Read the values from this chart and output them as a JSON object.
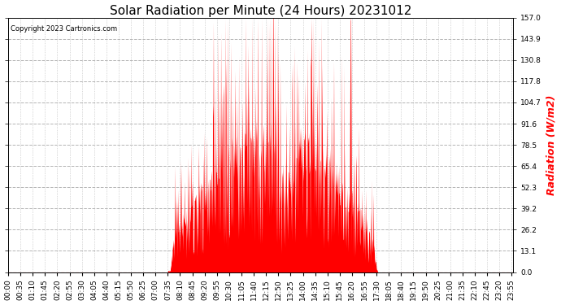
{
  "title": "Solar Radiation per Minute (24 Hours) 20231012",
  "ylabel": "Radiation (W/m2)",
  "ylabel_color": "#ff0000",
  "copyright_text": "Copyright 2023 Cartronics.com",
  "background_color": "#ffffff",
  "plot_bg_color": "#ffffff",
  "bar_color": "#ff0000",
  "grid_color": "#b4b4b4",
  "zero_line_color": "#ff0000",
  "ylim": [
    0.0,
    157.0
  ],
  "yticks": [
    0.0,
    13.1,
    26.2,
    39.2,
    52.3,
    65.4,
    78.5,
    91.6,
    104.7,
    117.8,
    130.8,
    143.9,
    157.0
  ],
  "title_fontsize": 11,
  "ylabel_fontsize": 9,
  "tick_fontsize": 6.5,
  "total_minutes": 1440,
  "sunrise_minute": 453,
  "sunset_minute": 1055,
  "xtick_step": 35,
  "figwidth": 6.9,
  "figheight": 3.75,
  "dpi": 100
}
